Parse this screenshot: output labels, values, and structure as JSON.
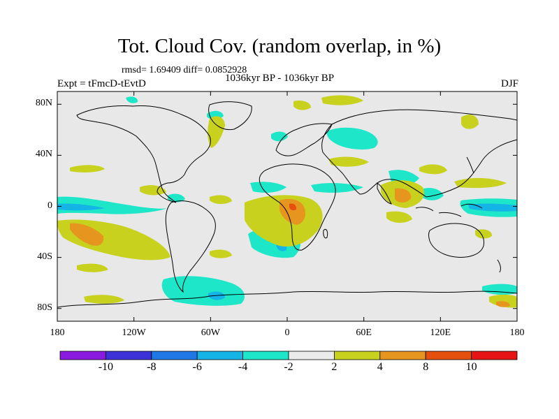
{
  "title": "Tot. Cloud Cov. (random overlap, in %)",
  "stats": "rmsd= 1.69409  diff= 0.0852928",
  "period": "1036kyr BP - 1036kyr BP",
  "experiment": "Expt = tFmcD-tEvtD",
  "season": "DJF",
  "map": {
    "projection": "cylindrical equidistant",
    "lon_range": [
      -180,
      180
    ],
    "lat_range": [
      -90,
      90
    ],
    "lat_labels": [
      "80N",
      "40N",
      "0",
      "40S",
      "80S"
    ],
    "lon_labels": [
      "180",
      "120W",
      "60W",
      "0",
      "60E",
      "120E",
      "180"
    ],
    "background_color": "#e8e8e8",
    "coastline_color": "#000000"
  },
  "colorbar": {
    "labels": [
      "-10",
      "-8",
      "-6",
      "-4",
      "-2",
      "2",
      "4",
      "8",
      "10"
    ],
    "colors": [
      "#8a1ae0",
      "#3c32d8",
      "#1f78e6",
      "#14b4e6",
      "#1ee6c8",
      "#ebebeb",
      "#c8d21e",
      "#e6961e",
      "#e6500f",
      "#e61414"
    ]
  }
}
